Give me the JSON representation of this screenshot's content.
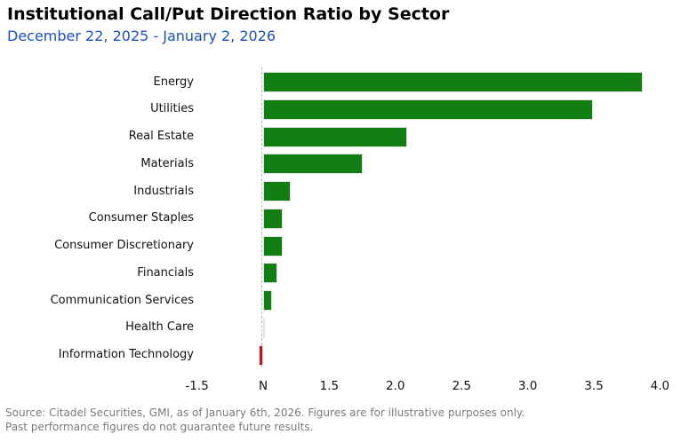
{
  "chart_data": {
    "type": "bar",
    "orientation": "horizontal",
    "title": "Institutional Call/Put Direction Ratio by Sector",
    "subtitle": "December 22, 2025 - January 2, 2026",
    "categories": [
      "Energy",
      "Utilities",
      "Real Estate",
      "Materials",
      "Industrials",
      "Consumer Staples",
      "Consumer Discretionary",
      "Financials",
      "Communication Services",
      "Health Care",
      "Information Technology"
    ],
    "values": [
      3.87,
      3.49,
      2.09,
      1.75,
      0.62,
      0.45,
      0.44,
      0.32,
      0.2,
      0.04,
      -0.11
    ],
    "xlabel": "",
    "ylabel": "",
    "x_axis": {
      "tick_labels": [
        "-1.5",
        "N",
        "1.5",
        "2.0",
        "2.5",
        "3.0",
        "3.5",
        "4.0"
      ],
      "zero_tick_index": 1,
      "scale_note": "ticks equally spaced; one gap = 1.5 ratio units below 1.5 and 0.5 units above 1.5"
    },
    "grid": "dashed vertical line at zero only",
    "legend": "none"
  },
  "colors": {
    "positive_bar": "#107e10",
    "negative_bar": "#cc1010",
    "bar_edge": "#e2e2e2",
    "subtitle": "#1e50c3",
    "zero_line": "#b5b5b5",
    "footer_text": "#7a7a7a",
    "title_text": "#000000",
    "axis_text": "#111111"
  },
  "footer": {
    "line1": "Source: Citadel Securities, GMI, as of January 6th, 2026. Figures are for illustrative purposes only.",
    "line2": "Past performance figures do not guarantee future results."
  }
}
